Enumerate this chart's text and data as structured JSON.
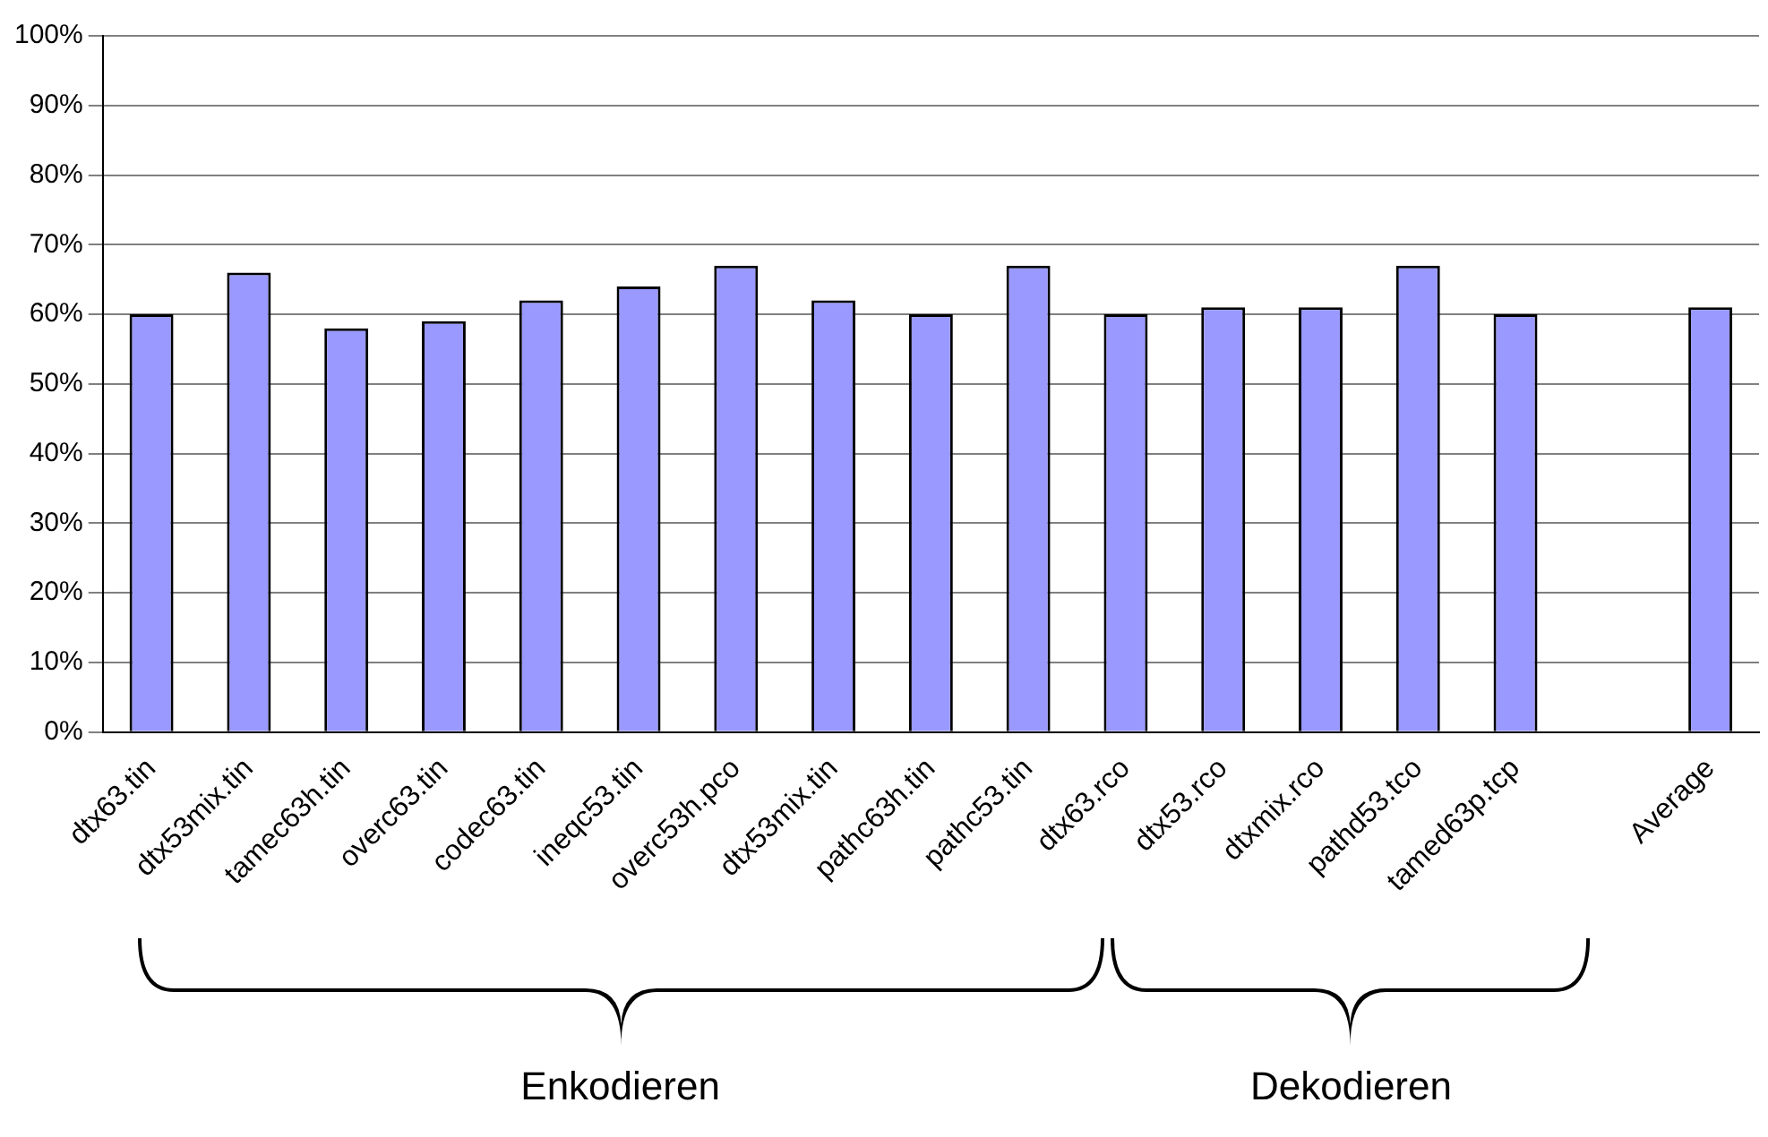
{
  "chart_data": {
    "type": "bar",
    "categories": [
      "dtx63.tin",
      "dtx53mix.tin",
      "tamec63h.tin",
      "overc63.tin",
      "codec63.tin",
      "ineqc53.tin",
      "overc53h.pco",
      "dtx53mix.tin",
      "pathc63h.tin",
      "pathc53.tin",
      "dtx63.rco",
      "dtx53.rco",
      "dtxmix.rco",
      "pathd53.tco",
      "tamed63p.tcp",
      null,
      "Average"
    ],
    "values": [
      60,
      66,
      58,
      59,
      62,
      64,
      67,
      62,
      60,
      67,
      60,
      61,
      61,
      67,
      60,
      null,
      61
    ],
    "color": "#9999ff",
    "ylim": [
      0,
      100
    ],
    "yticks": [
      {
        "value": 0,
        "label": "0%"
      },
      {
        "value": 10,
        "label": "10%"
      },
      {
        "value": 20,
        "label": "20%"
      },
      {
        "value": 30,
        "label": "30%"
      },
      {
        "value": 40,
        "label": "40%"
      },
      {
        "value": 50,
        "label": "50%"
      },
      {
        "value": 60,
        "label": "60%"
      },
      {
        "value": 70,
        "label": "70%"
      },
      {
        "value": 80,
        "label": "80%"
      },
      {
        "value": 90,
        "label": "90%"
      },
      {
        "value": 100,
        "label": "100%"
      }
    ],
    "grid": "y",
    "annotations": [
      "Enkodieren",
      "Dekodieren"
    ]
  }
}
